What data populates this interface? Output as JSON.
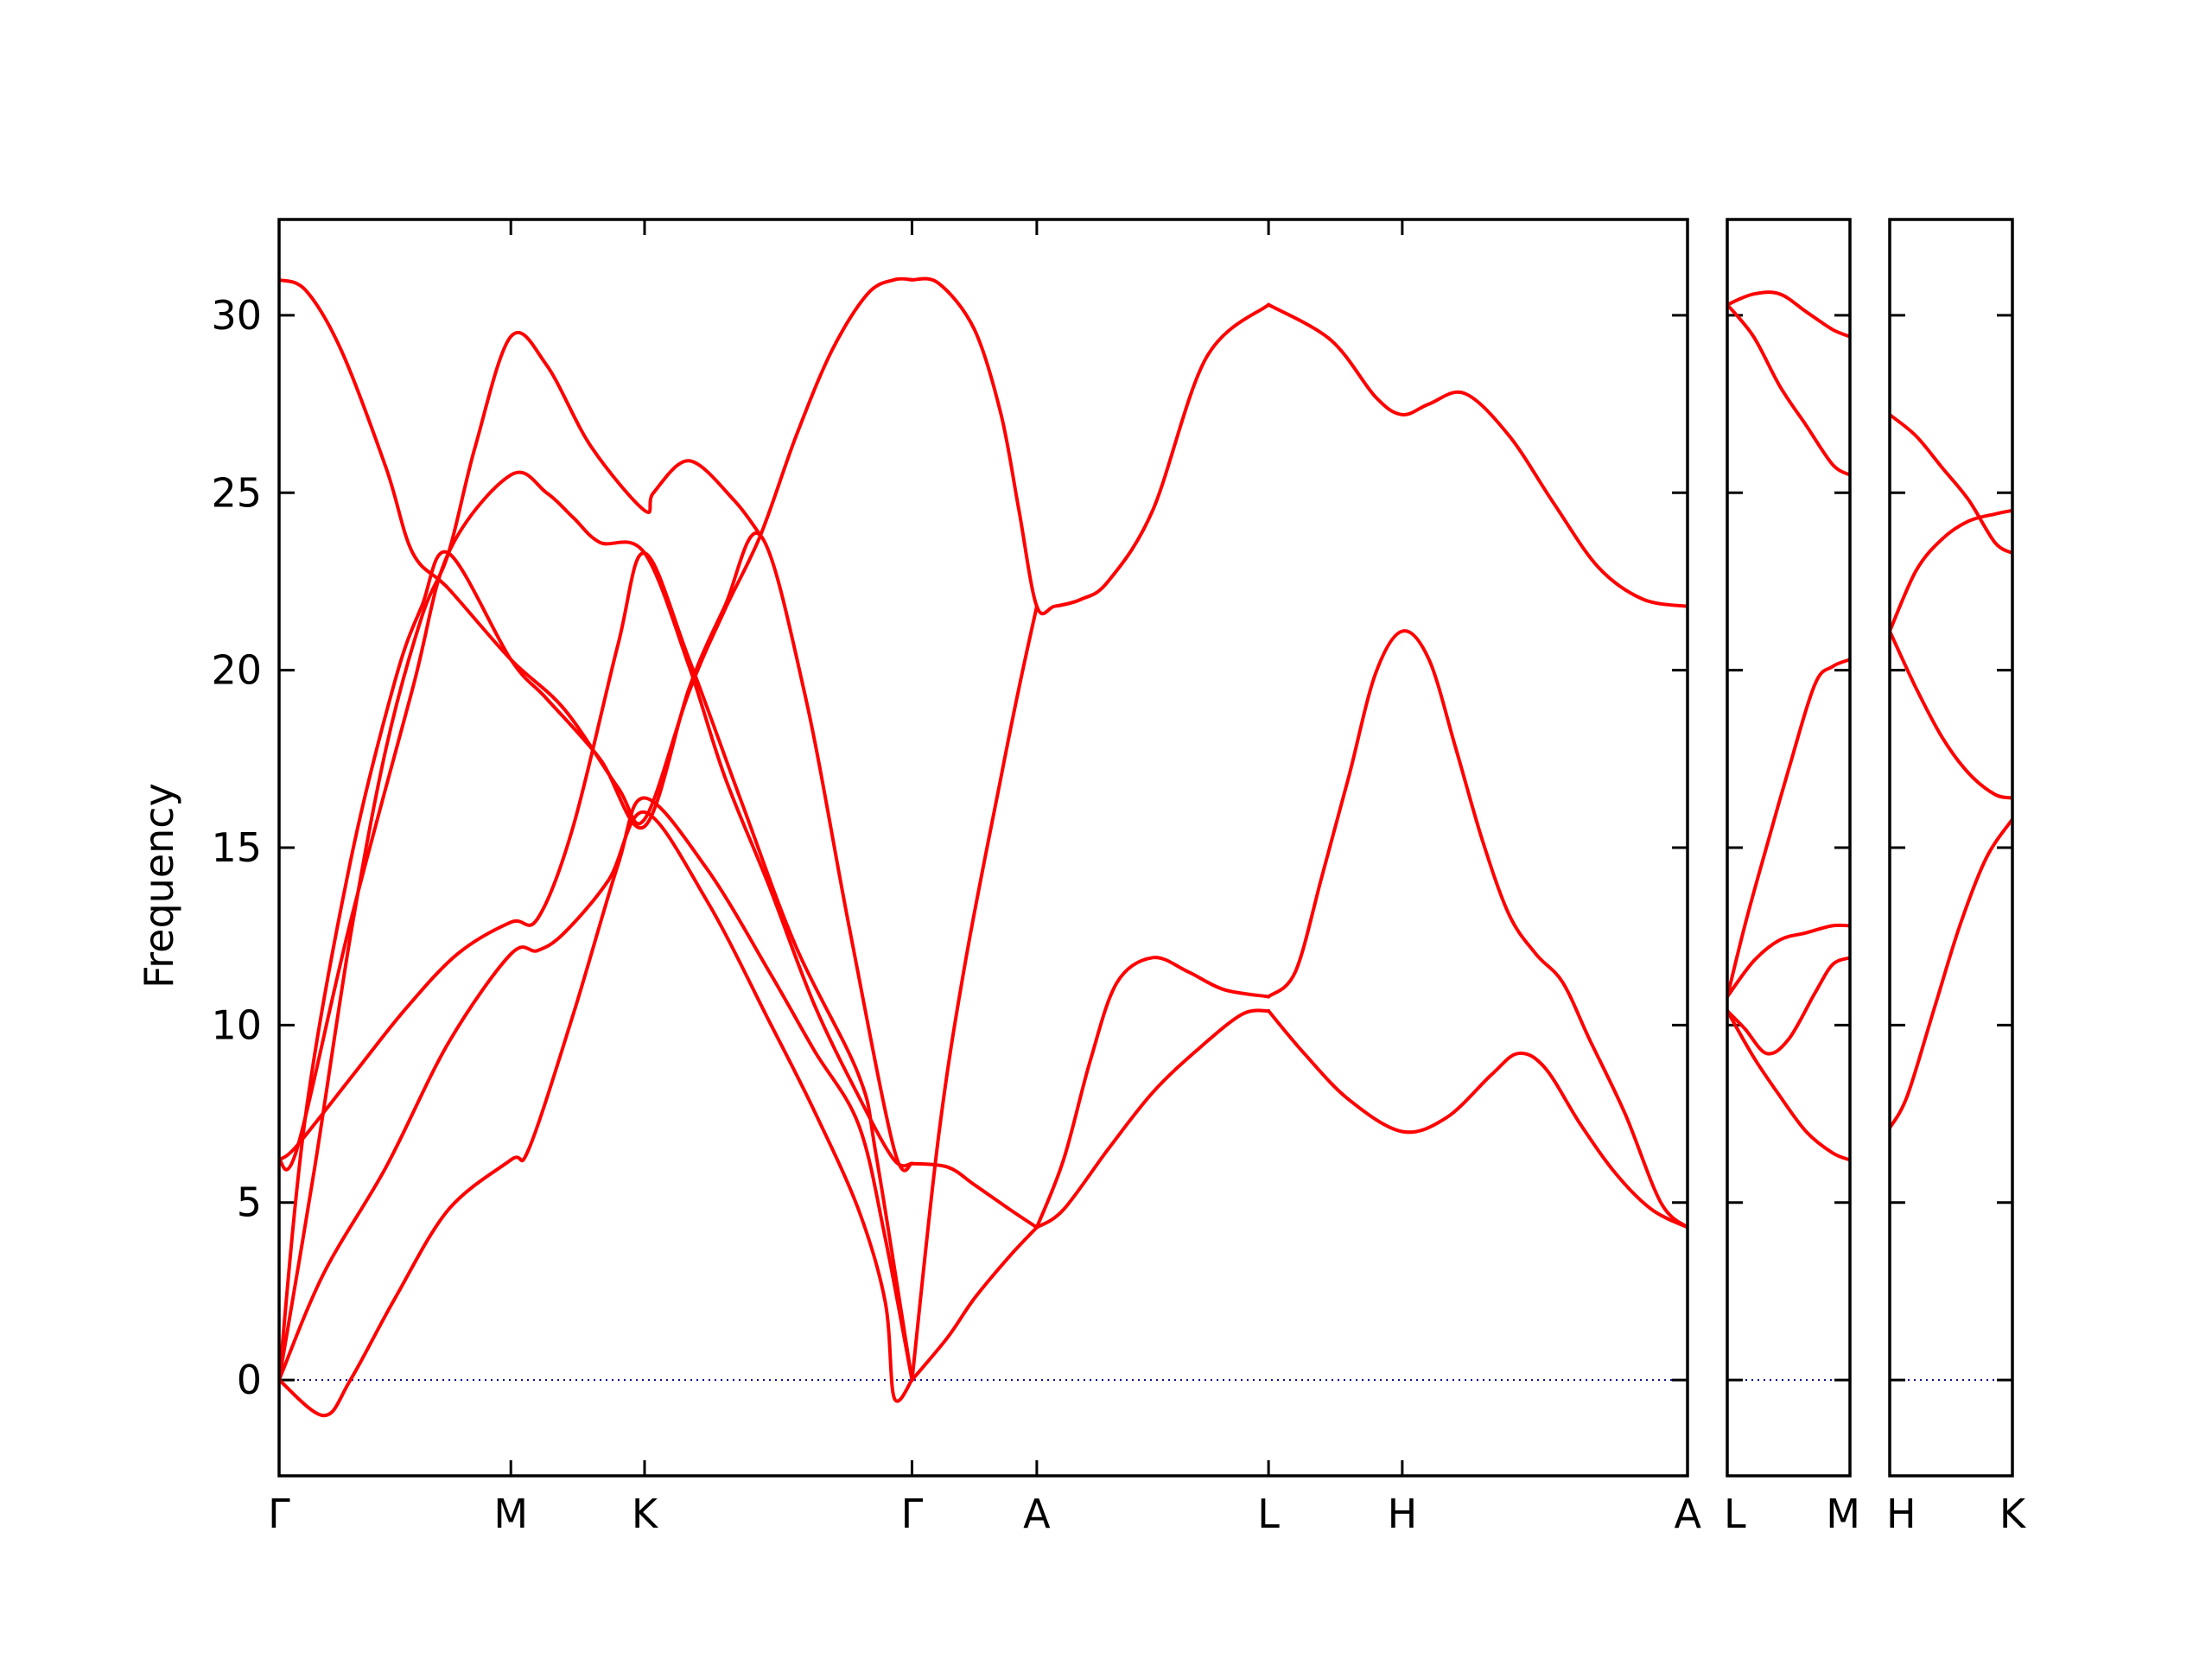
{
  "chart_data": {
    "type": "line",
    "title": "",
    "ylabel": "Frequency",
    "xlabel": "",
    "ylim": [
      -2.7,
      32.7
    ],
    "yticks": [
      0,
      5,
      10,
      15,
      20,
      25,
      30
    ],
    "ytick_labels": [
      "0",
      "5",
      "10",
      "15",
      "20",
      "25",
      "30"
    ],
    "grid": false,
    "legend": "none",
    "colors": {
      "band": "#ff0000",
      "zero_line": "#00008b",
      "frame": "#000000"
    },
    "panels": [
      {
        "xlim": [
          0,
          15.8
        ],
        "points": [
          {
            "label": "Γ",
            "x": 0
          },
          {
            "label": "M",
            "x": 2.6
          },
          {
            "label": "K",
            "x": 4.1
          },
          {
            "label": "Γ",
            "x": 7.1
          },
          {
            "label": "A",
            "x": 8.5
          },
          {
            "label": "L",
            "x": 11.1
          },
          {
            "label": "H",
            "x": 12.6
          },
          {
            "label": "A",
            "x": 15.8
          }
        ],
        "series": [
          {
            "x": [
              0,
              0.5,
              0.8,
              1.3,
              1.9,
              2.6,
              2.8,
              3.3,
              3.8,
              4.1,
              4.8,
              5.5,
              6.0,
              6.5,
              6.8,
              7.1
            ],
            "y": [
              0,
              -1,
              0,
              2.3,
              4.8,
              6.2,
              6.5,
              10.3,
              14.5,
              16.4,
              14.4,
              11.5,
              9.3,
              7.2,
              4.0,
              0
            ]
          },
          {
            "x": [
              0,
              0.5,
              1.2,
              1.9,
              2.6,
              2.9,
              3.2,
              3.7,
              4.1,
              4.8,
              5.5,
              6.0,
              6.5,
              6.8,
              6.9,
              7.1
            ],
            "y": [
              0,
              3,
              6,
              9.5,
              12,
              12.1,
              12.6,
              14.1,
              16,
              13.5,
              10.1,
              7.6,
              4.8,
              2.2,
              -0.5,
              0
            ]
          },
          {
            "x": [
              0,
              0.2,
              0.8,
              1.4,
              2.0,
              2.6,
              2.9,
              3.3,
              3.8,
              4.1,
              4.6,
              5.2,
              5.8,
              6.5,
              6.7,
              7.1
            ],
            "y": [
              6.2,
              6.6,
              8.5,
              10.4,
              12.0,
              12.9,
              13.0,
              15.6,
              20.7,
              23.3,
              20.3,
              16.2,
              12.2,
              8.6,
              6.3,
              0
            ]
          },
          {
            "x": [
              0,
              0.2,
              0.8,
              1.5,
              1.9,
              2.6,
              3.0,
              3.3,
              3.6,
              4.1,
              4.6,
              5.0,
              5.5,
              6.0,
              6.5,
              6.9,
              7.1
            ],
            "y": [
              6.2,
              6.5,
              12.9,
              19.5,
              23.3,
              25.5,
              25.0,
              24.3,
              23.6,
              23.3,
              20.1,
              17.0,
              13.9,
              10.6,
              8.0,
              6.2,
              6.1
            ]
          },
          {
            "x": [
              0,
              0.3,
              0.8,
              1.3,
              1.6,
              1.9,
              2.6,
              3.0,
              3.6,
              4.1,
              4.6,
              5.0,
              5.4,
              5.9,
              6.4,
              6.9,
              7.1
            ],
            "y": [
              0,
              7.5,
              14.6,
              19.7,
              21.8,
              23.3,
              20.3,
              19.2,
              17.5,
              15.6,
              19.5,
              21.8,
              23.8,
              19.3,
              12.7,
              6.5,
              6.1
            ]
          },
          {
            "x": [
              0,
              0.4,
              0.8,
              1.2,
              1.6,
              1.9,
              2.2,
              2.6,
              3.0,
              3.5,
              4.1,
              4.2,
              4.6,
              5.1,
              5.4
            ],
            "y": [
              0,
              6.0,
              12.5,
              17.8,
              21.5,
              23.3,
              26.3,
              29.4,
              28.6,
              26.3,
              24.5,
              25.0,
              25.9,
              24.8,
              23.8
            ]
          },
          {
            "x": [
              0,
              0.3,
              0.7,
              1.2,
              1.5,
              1.9,
              2.6,
              3.2,
              3.8,
              4.1,
              4.6,
              5.0,
              5.4,
              5.8,
              6.2,
              6.6,
              6.9,
              7.1
            ],
            "y": [
              31.0,
              30.7,
              29.0,
              25.7,
              23.3,
              22.3,
              20.3,
              18.9,
              16.7,
              15.8,
              19.4,
              21.7,
              23.8,
              26.6,
              29.0,
              30.6,
              31.0,
              31.0
            ]
          },
          {
            "x": [
              7.1,
              7.4,
              7.8,
              8.1,
              8.3,
              8.5,
              8.7,
              9.0,
              9.3,
              9.8,
              10.4,
              11.1
            ],
            "y": [
              31.0,
              30.9,
              29.6,
              27.2,
              24.5,
              21.8,
              21.8,
              22.0,
              22.5,
              24.5,
              28.8,
              30.3
            ]
          },
          {
            "x": [
              11.1,
              11.8,
              12.3,
              12.6,
              12.9,
              13.3,
              13.8,
              14.3,
              14.8,
              15.3,
              15.8
            ],
            "y": [
              30.3,
              29.3,
              27.7,
              27.2,
              27.5,
              27.8,
              26.6,
              24.7,
              22.9,
              22.0,
              21.8
            ]
          },
          {
            "x": [
              7.1,
              7.5,
              7.8,
              8.2,
              8.5
            ],
            "y": [
              6.1,
              6.0,
              5.5,
              4.8,
              4.3
            ]
          },
          {
            "x": [
              7.1,
              7.4,
              7.7,
              8.1,
              8.3,
              8.5
            ],
            "y": [
              0,
              6.9,
              11.8,
              17.0,
              19.5,
              21.8
            ]
          },
          {
            "x": [
              7.1,
              7.5,
              7.8,
              8.2,
              8.5
            ],
            "y": [
              0,
              1.2,
              2.3,
              3.5,
              4.3
            ]
          },
          {
            "x": [
              8.5,
              8.8,
              9.1,
              9.4,
              9.8,
              10.2,
              10.6,
              11.1
            ],
            "y": [
              4.3,
              6.2,
              9.0,
              11.2,
              11.9,
              11.5,
              11.0,
              10.8
            ]
          },
          {
            "x": [
              8.5,
              8.8,
              9.3,
              9.8,
              10.3,
              10.8,
              11.1
            ],
            "y": [
              4.3,
              4.8,
              6.5,
              8.1,
              9.3,
              10.3,
              10.4
            ]
          },
          {
            "x": [
              11.1,
              11.4,
              11.7,
              12.0,
              12.3,
              12.6,
              12.9,
              13.2,
              13.5,
              13.8,
              14.1,
              14.4,
              14.7,
              15.1,
              15.5,
              15.8
            ],
            "y": [
              10.8,
              11.5,
              14.2,
              17.0,
              19.9,
              21.1,
              20.3,
              17.8,
              15.2,
              13.1,
              12.0,
              11.2,
              9.6,
              7.5,
              5.0,
              4.3
            ]
          },
          {
            "x": [
              11.1,
              11.5,
              12.0,
              12.6,
              13.1,
              13.6,
              13.9,
              14.2,
              14.6,
              15.0,
              15.4,
              15.8
            ],
            "y": [
              10.4,
              9.2,
              7.9,
              7.0,
              7.4,
              8.6,
              9.2,
              8.8,
              7.2,
              5.8,
              4.8,
              4.3
            ]
          }
        ],
        "zero_line": true
      },
      {
        "xlim": [
          0,
          1.4
        ],
        "points": [
          {
            "label": "L",
            "x": 0
          },
          {
            "label": "M",
            "x": 1.4
          }
        ],
        "series": [
          {
            "x": [
              0,
              0.3,
              0.6,
              0.9,
              1.2,
              1.4
            ],
            "y": [
              30.3,
              30.6,
              30.6,
              30.1,
              29.6,
              29.4
            ]
          },
          {
            "x": [
              0,
              0.3,
              0.6,
              0.9,
              1.2,
              1.4
            ],
            "y": [
              30.3,
              29.4,
              28.0,
              26.9,
              25.8,
              25.5
            ]
          },
          {
            "x": [
              0,
              0.3,
              0.6,
              0.9,
              1.2,
              1.4
            ],
            "y": [
              10.8,
              11.8,
              12.4,
              12.6,
              12.8,
              12.8
            ]
          },
          {
            "x": [
              0,
              0.2,
              0.4,
              0.7,
              1.0,
              1.2,
              1.4
            ],
            "y": [
              10.8,
              12.8,
              14.6,
              17.2,
              19.6,
              20.1,
              20.3
            ]
          },
          {
            "x": [
              0,
              0.2,
              0.45,
              0.7,
              1.0,
              1.2,
              1.4
            ],
            "y": [
              10.4,
              9.9,
              9.2,
              9.6,
              10.9,
              11.7,
              11.9
            ]
          },
          {
            "x": [
              0,
              0.3,
              0.6,
              0.9,
              1.2,
              1.4
            ],
            "y": [
              10.4,
              9.1,
              8.0,
              7.0,
              6.4,
              6.2
            ]
          }
        ],
        "zero_line": true
      },
      {
        "xlim": [
          0,
          1.4
        ],
        "points": [
          {
            "label": "H",
            "x": 0
          },
          {
            "label": "K",
            "x": 1.4
          }
        ],
        "series": [
          {
            "x": [
              0,
              0.3,
              0.6,
              0.9,
              1.2,
              1.4
            ],
            "y": [
              27.2,
              26.6,
              25.7,
              24.8,
              23.6,
              23.3
            ]
          },
          {
            "x": [
              0,
              0.3,
              0.6,
              0.9,
              1.2,
              1.4
            ],
            "y": [
              21.1,
              22.8,
              23.7,
              24.2,
              24.4,
              24.5
            ]
          },
          {
            "x": [
              0,
              0.3,
              0.6,
              0.9,
              1.2,
              1.4
            ],
            "y": [
              21.1,
              19.5,
              18.1,
              17.1,
              16.5,
              16.4
            ]
          },
          {
            "x": [
              0,
              0.2,
              0.5,
              0.8,
              1.1,
              1.4
            ],
            "y": [
              7.1,
              8.0,
              10.4,
              12.8,
              14.7,
              15.8
            ]
          }
        ],
        "zero_line": true
      }
    ]
  }
}
